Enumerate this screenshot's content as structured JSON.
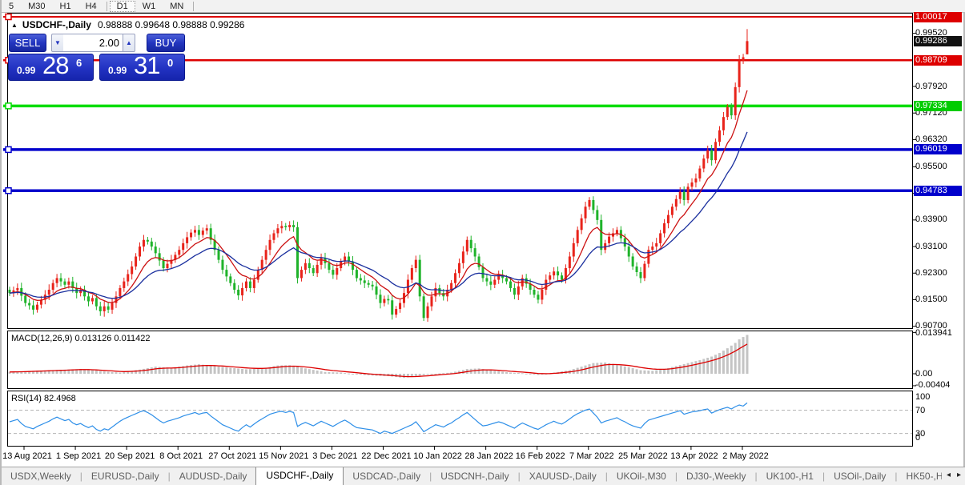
{
  "toolbar": {
    "groups": [
      [
        "5",
        "M30",
        "H1",
        "H4"
      ],
      [
        "D1",
        "W1",
        "MN"
      ]
    ],
    "active": "D1"
  },
  "chart": {
    "title": "USDCHF-,Daily",
    "ohlc_text": "0.98888 0.99648 0.98888 0.99286",
    "expand_icon": "▲"
  },
  "trade_panel": {
    "sell_label": "SELL",
    "buy_label": "BUY",
    "volume": "2.00",
    "spin_down_icon": "▼",
    "spin_up_icon": "▲",
    "sell_price": {
      "small": "0.99",
      "big": "28",
      "sup": "6"
    },
    "buy_price": {
      "small": "0.99",
      "big": "31",
      "sup": "0"
    }
  },
  "indicators": {
    "macd": {
      "label": "MACD(12,26,9) 0.013126 0.011422",
      "axis_labels": [
        {
          "text": "0.013941",
          "value": 0.013941
        },
        {
          "text": "0.00",
          "value": 0
        },
        {
          "text": "-0.00404",
          "value": -0.00404
        }
      ]
    },
    "rsi": {
      "label": "RSI(14) 82.4968",
      "axis_labels": [
        {
          "text": "100",
          "value": 100
        },
        {
          "text": "70",
          "value": 70
        },
        {
          "text": "30",
          "value": 30
        },
        {
          "text": "0",
          "value": 0
        }
      ]
    }
  },
  "price_axis": {
    "ticks": [
      "0.99520",
      "0.97920",
      "0.97120",
      "0.96320",
      "0.95500",
      "0.94700",
      "0.93900",
      "0.93100",
      "0.92300",
      "0.91500",
      "0.90700"
    ],
    "badges": [
      {
        "text": "1.00017",
        "price": 1.00017,
        "color": "#dd0000"
      },
      {
        "text": "0.98709",
        "price": 0.98709,
        "color": "#dd0000"
      },
      {
        "text": "0.97334",
        "price": 0.97334,
        "color": "#00cc00"
      },
      {
        "text": "0.96019",
        "price": 0.96019,
        "color": "#0000cc"
      },
      {
        "text": "0.94783",
        "price": 0.94783,
        "color": "#0000cc"
      },
      {
        "text": "0.99286",
        "price": 0.99286,
        "color": "#111111"
      }
    ]
  },
  "tabs": {
    "items": [
      "USDX,Weekly",
      "EURUSD-,Daily",
      "AUDUSD-,Daily",
      "USDCHF-,Daily",
      "USDCAD-,Daily",
      "USDCNH-,Daily",
      "XAUUSD-,Daily",
      "UKOil-,M30",
      "DJ30-,Weekly",
      "UK100-,H1",
      "USOil-,Daily",
      "HK50-,H"
    ],
    "active": "USDCHF-,Daily",
    "left_arrow": "◂",
    "right_arrow": "▸"
  },
  "chart_data": {
    "type": "candlestick",
    "symbol": "USDCHF-,Daily",
    "x_labels": [
      "13 Aug 2021",
      "1 Sep 2021",
      "20 Sep 2021",
      "8 Oct 2021",
      "27 Oct 2021",
      "15 Nov 2021",
      "3 Dec 2021",
      "22 Dec 2021",
      "10 Jan 2022",
      "28 Jan 2022",
      "16 Feb 2022",
      "7 Mar 2022",
      "25 Mar 2022",
      "13 Apr 2022",
      "2 May 2022"
    ],
    "bars_per_label": 13,
    "price_ylim": [
      0.9065,
      1.0012
    ],
    "up_color": "#e8231a",
    "down_color": "#1fb32a",
    "first_open": 0.918,
    "last_bar": {
      "open": 0.98888,
      "high": 0.99648,
      "low": 0.98888,
      "close": 0.99286
    },
    "closes": [
      0.917,
      0.9178,
      0.9185,
      0.9162,
      0.914,
      0.9133,
      0.912,
      0.9135,
      0.915,
      0.9165,
      0.918,
      0.92,
      0.9215,
      0.9205,
      0.9195,
      0.9205,
      0.9185,
      0.917,
      0.918,
      0.916,
      0.9145,
      0.9155,
      0.913,
      0.9115,
      0.913,
      0.912,
      0.914,
      0.916,
      0.9185,
      0.9205,
      0.9227,
      0.925,
      0.928,
      0.931,
      0.933,
      0.9325,
      0.931,
      0.929,
      0.9268,
      0.9245,
      0.9258,
      0.927,
      0.9285,
      0.93,
      0.932,
      0.9338,
      0.9352,
      0.936,
      0.9345,
      0.9358,
      0.9365,
      0.933,
      0.93,
      0.927,
      0.924,
      0.922,
      0.92,
      0.918,
      0.9163,
      0.9185,
      0.9205,
      0.9185,
      0.921,
      0.924,
      0.927,
      0.93,
      0.933,
      0.935,
      0.9365,
      0.9372,
      0.9368,
      0.9375,
      0.9368,
      0.9215,
      0.924,
      0.926,
      0.9245,
      0.923,
      0.9255,
      0.9275,
      0.926,
      0.924,
      0.9225,
      0.9245,
      0.9265,
      0.928,
      0.9265,
      0.924,
      0.9215,
      0.9208,
      0.92,
      0.9195,
      0.919,
      0.9165,
      0.914,
      0.9152,
      0.9148,
      0.9105,
      0.9122,
      0.914,
      0.917,
      0.921,
      0.9245,
      0.927,
      0.916,
      0.9095,
      0.913,
      0.916,
      0.9185,
      0.917,
      0.916,
      0.918,
      0.92,
      0.923,
      0.926,
      0.9295,
      0.933,
      0.9305,
      0.928,
      0.9248,
      0.9215,
      0.9205,
      0.9195,
      0.921,
      0.9225,
      0.9215,
      0.9205,
      0.9185,
      0.9165,
      0.919,
      0.9215,
      0.9198,
      0.918,
      0.9165,
      0.915,
      0.918,
      0.921,
      0.9223,
      0.9235,
      0.9223,
      0.921,
      0.9245,
      0.928,
      0.932,
      0.936,
      0.9395,
      0.943,
      0.945,
      0.942,
      0.939,
      0.93,
      0.932,
      0.934,
      0.935,
      0.936,
      0.9335,
      0.931,
      0.928,
      0.925,
      0.9233,
      0.9215,
      0.9258,
      0.93,
      0.931,
      0.932,
      0.935,
      0.938,
      0.9405,
      0.943,
      0.9453,
      0.9475,
      0.945,
      0.949,
      0.9503,
      0.9515,
      0.9545,
      0.9575,
      0.96,
      0.957,
      0.9625,
      0.966,
      0.97,
      0.973,
      0.9705,
      0.979,
      0.987,
      0.988,
      0.99286
    ],
    "ma_fast": {
      "period": 9,
      "color": "#cc1111"
    },
    "ma_slow": {
      "period": 20,
      "color": "#1a2f9e"
    },
    "hlines": [
      {
        "price": 1.00017,
        "color": "#dd0000",
        "width": 2
      },
      {
        "price": 0.98709,
        "color": "#dd0000",
        "width": 2.5
      },
      {
        "price": 0.97334,
        "color": "#00dd00",
        "width": 3.5
      },
      {
        "price": 0.96019,
        "color": "#0000cc",
        "width": 3.5
      },
      {
        "price": 0.94783,
        "color": "#0000cc",
        "width": 3.5
      }
    ],
    "macd": {
      "ylim": [
        -0.0059,
        0.0155
      ],
      "histogram_color": "#c4c4c4",
      "signal_color": "#dd0000",
      "signal_period": 9,
      "values": [
        0.0006,
        0.00067,
        0.00073,
        0.0008,
        0.00087,
        0.00093,
        0.001,
        0.00105,
        0.0011,
        0.00115,
        0.0012,
        0.00125,
        0.0013,
        0.00135,
        0.0014,
        0.00145,
        0.0015,
        0.00155,
        0.0016,
        0.00147,
        0.00133,
        0.0012,
        0.00107,
        0.00093,
        0.0008,
        0.0007,
        0.0006,
        0.0005,
        0.0004,
        0.0006,
        0.0008,
        0.001,
        0.0012,
        0.0014,
        0.00165,
        0.0019,
        0.00215,
        0.0024,
        0.0023,
        0.0022,
        0.0021,
        0.002,
        0.0022,
        0.0024,
        0.0026,
        0.0028,
        0.00293,
        0.00307,
        0.0032,
        0.00305,
        0.0029,
        0.00275,
        0.0026,
        0.00245,
        0.0023,
        0.00215,
        0.002,
        0.00188,
        0.00175,
        0.00163,
        0.0015,
        0.00158,
        0.00165,
        0.00173,
        0.0018,
        0.00205,
        0.0023,
        0.00255,
        0.0028,
        0.00283,
        0.00287,
        0.0029,
        0.00263,
        0.00235,
        0.00208,
        0.0018,
        0.00156,
        0.00132,
        0.00108,
        0.00084,
        0.0006,
        0.00055,
        0.0005,
        0.00045,
        0.0004,
        0.00025,
        0.0001,
        -5e-05,
        -0.0002,
        -0.0003,
        -0.0004,
        -0.0005,
        -0.0006,
        -0.00065,
        -0.0007,
        -0.00075,
        -0.0008,
        -0.00095,
        -0.0011,
        -0.00125,
        -0.0014,
        -0.0012,
        -0.001,
        -0.0008,
        -0.0006,
        -0.00045,
        -0.0003,
        -0.00015,
        0.0,
        0.0001,
        0.0002,
        0.0003,
        0.0004,
        0.0007,
        0.001,
        0.0013,
        0.0016,
        0.00167,
        0.00173,
        0.0018,
        0.0016,
        0.0014,
        0.0012,
        0.001,
        0.00085,
        0.0007,
        0.00055,
        0.0004,
        0.00033,
        0.00027,
        0.0002,
        5e-05,
        -0.0001,
        -0.00025,
        -0.0004,
        -0.0002,
        0.0,
        0.0002,
        0.0004,
        0.0006,
        0.0008,
        0.001,
        0.0012,
        0.0016,
        0.002,
        0.0024,
        0.0028,
        0.0032,
        0.0036,
        0.00367,
        0.00373,
        0.0038,
        0.00353,
        0.00327,
        0.003,
        0.00273,
        0.00247,
        0.0022,
        0.00187,
        0.00153,
        0.0012,
        0.00113,
        0.00107,
        0.001,
        0.0012,
        0.0014,
        0.0016,
        0.00193,
        0.00227,
        0.0026,
        0.00293,
        0.00327,
        0.0036,
        0.00393,
        0.00427,
        0.0046,
        0.005,
        0.0054,
        0.0058,
        0.0064,
        0.007,
        0.0078,
        0.0086,
        0.0095,
        0.0104,
        0.0116,
        0.0124,
        0.0131
      ]
    },
    "rsi": {
      "ylim": [
        0,
        100
      ],
      "levels": [
        70,
        30
      ],
      "line_color": "#2e8fe8",
      "values": [
        50,
        52,
        54,
        47,
        42,
        40,
        38,
        42,
        45,
        48,
        51,
        55,
        58,
        55,
        52,
        54,
        48,
        45,
        47,
        43,
        40,
        43,
        37,
        34,
        38,
        36,
        41,
        46,
        51,
        55,
        58,
        61,
        64,
        67,
        69,
        66,
        62,
        57,
        52,
        48,
        51,
        53,
        55,
        57,
        60,
        62,
        64,
        66,
        63,
        65,
        66,
        60,
        55,
        50,
        45,
        42,
        39,
        36,
        34,
        40,
        45,
        41,
        46,
        51,
        55,
        59,
        63,
        65,
        67,
        68,
        66,
        68,
        66,
        42,
        46,
        49,
        46,
        43,
        47,
        51,
        48,
        45,
        42,
        46,
        50,
        53,
        49,
        44,
        40,
        39,
        38,
        37,
        36,
        33,
        30,
        34,
        32,
        30,
        33,
        36,
        39,
        42,
        45,
        50,
        42,
        33,
        37,
        41,
        45,
        43,
        41,
        45,
        48,
        53,
        57,
        62,
        66,
        60,
        54,
        48,
        43,
        44,
        46,
        48,
        50,
        48,
        45,
        42,
        39,
        44,
        48,
        45,
        42,
        39,
        37,
        41,
        45,
        48,
        51,
        48,
        46,
        50,
        55,
        60,
        64,
        67,
        70,
        72,
        65,
        58,
        48,
        51,
        53,
        55,
        57,
        53,
        50,
        46,
        43,
        41,
        39,
        47,
        53,
        55,
        57,
        59,
        61,
        63,
        65,
        67,
        69,
        63,
        65,
        67,
        68,
        69,
        71,
        72,
        65,
        68,
        71,
        73,
        75,
        72,
        76,
        79,
        77,
        82.5
      ]
    }
  }
}
